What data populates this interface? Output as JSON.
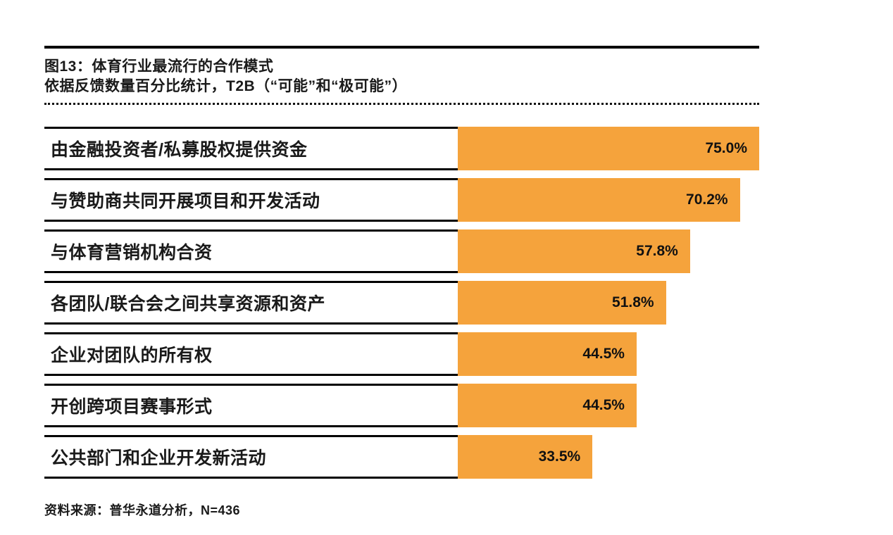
{
  "chart_data": {
    "type": "bar",
    "orientation": "horizontal",
    "title": "图13：体育行业最流行的合作模式",
    "subtitle": "依据反馈数量百分比统计，T2B（“可能”和“极可能”）",
    "categories": [
      "由金融投资者/私募股权提供资金",
      "与赞助商共同开展项目和开发活动",
      "与体育营销机构合资",
      "各团队/联合会之间共享资源和资产",
      "企业对团队的所有权",
      "开创跨项目赛事形式",
      "公共部门和企业开发新活动"
    ],
    "values": [
      75.0,
      70.2,
      57.8,
      51.8,
      44.5,
      44.5,
      33.5
    ],
    "value_labels": [
      "75.0%",
      "70.2%",
      "57.8%",
      "51.8%",
      "44.5%",
      "44.5%",
      "33.5%"
    ],
    "xlim": [
      0,
      75
    ],
    "bar_color": "#F5A33C",
    "grid": false,
    "legend": false,
    "value_label_position": "inside-end",
    "source": "资料来源：普华永道分析，N=436"
  }
}
